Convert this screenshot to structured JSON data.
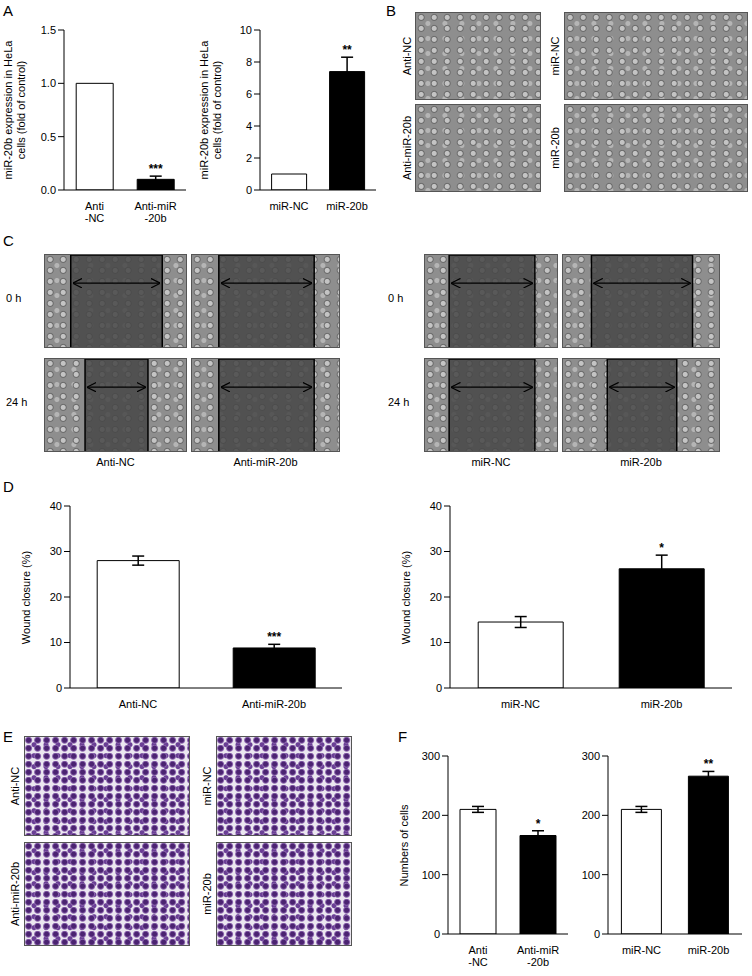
{
  "panel_labels": [
    "A",
    "B",
    "C",
    "D",
    "E",
    "F"
  ],
  "image_panels": {
    "B": [
      "Anti-NC",
      "Anti-miR-20b",
      "miR-NC",
      "miR-20b"
    ],
    "C": {
      "times": [
        "0 h",
        "24 h"
      ],
      "groups": [
        [
          "Anti-NC",
          "Anti-miR-20b"
        ],
        [
          "miR-NC",
          "miR-20b"
        ]
      ]
    },
    "E": [
      "Anti-NC",
      "Anti-miR-20b",
      "miR-NC",
      "miR-20b"
    ]
  },
  "chart_data": [
    {
      "type": "bar",
      "y_label": "miR-20b expression in HeLa\ncells (fold of control)",
      "categories": [
        "Anti\n-NC",
        "Anti-miR\n-20b"
      ],
      "values": [
        1.0,
        0.1
      ],
      "errors": [
        null,
        0.03
      ],
      "colors": [
        "#ffffff",
        "#000000"
      ],
      "ylim": [
        0,
        1.5
      ],
      "yticks": [
        {
          "value": 0,
          "label": "0.0"
        },
        0.5,
        {
          "value": 1,
          "label": "1.0"
        },
        1.5
      ],
      "annotations": [
        {
          "category": "Anti-miR\n-20b",
          "text": "***"
        }
      ]
    },
    {
      "type": "bar",
      "y_label": "miR-20b expression in HeLa\ncells (fold of control)",
      "categories": [
        "miR-NC",
        "miR-20b"
      ],
      "values": [
        1.0,
        7.4
      ],
      "errors": [
        null,
        0.9
      ],
      "colors": [
        "#ffffff",
        "#000000"
      ],
      "ylim": [
        0,
        10
      ],
      "yticks": [
        0,
        2,
        4,
        6,
        8,
        10
      ],
      "annotations": [
        {
          "category": "miR-20b",
          "text": "**"
        }
      ]
    },
    {
      "type": "bar",
      "y_label": "Wound closure (%)",
      "categories": [
        "Anti-NC",
        "Anti-miR-20b"
      ],
      "values": [
        28,
        8.8
      ],
      "errors": [
        1,
        0.8
      ],
      "colors": [
        "#ffffff",
        "#000000"
      ],
      "ylim": [
        0,
        40
      ],
      "yticks": [
        0,
        10,
        20,
        30,
        40
      ],
      "annotations": [
        {
          "category": "Anti-miR-20b",
          "text": "***"
        }
      ]
    },
    {
      "type": "bar",
      "y_label": "Wound closure (%)",
      "categories": [
        "miR-NC",
        "miR-20b"
      ],
      "values": [
        14.5,
        26.2
      ],
      "errors": [
        1.2,
        3
      ],
      "colors": [
        "#ffffff",
        "#000000"
      ],
      "ylim": [
        0,
        40
      ],
      "yticks": [
        0,
        10,
        20,
        30,
        40
      ],
      "annotations": [
        {
          "category": "miR-20b",
          "text": "*"
        }
      ]
    },
    {
      "type": "bar",
      "y_label": "Numbers of cells",
      "categories": [
        "Anti\n-NC",
        "Anti-miR\n-20b"
      ],
      "values": [
        210,
        166
      ],
      "errors": [
        5,
        8
      ],
      "colors": [
        "#ffffff",
        "#000000"
      ],
      "ylim": [
        0,
        300
      ],
      "yticks": [
        0,
        100,
        200,
        300
      ],
      "annotations": [
        {
          "category": "Anti-miR\n-20b",
          "text": "*"
        }
      ]
    },
    {
      "type": "bar",
      "categories": [
        "miR-NC",
        "miR-20b"
      ],
      "values": [
        210,
        266
      ],
      "errors": [
        5,
        8
      ],
      "colors": [
        "#ffffff",
        "#000000"
      ],
      "ylim": [
        0,
        300
      ],
      "yticks": [
        0,
        100,
        200,
        300
      ],
      "annotations": [
        {
          "category": "miR-20b",
          "text": "**"
        }
      ]
    }
  ]
}
